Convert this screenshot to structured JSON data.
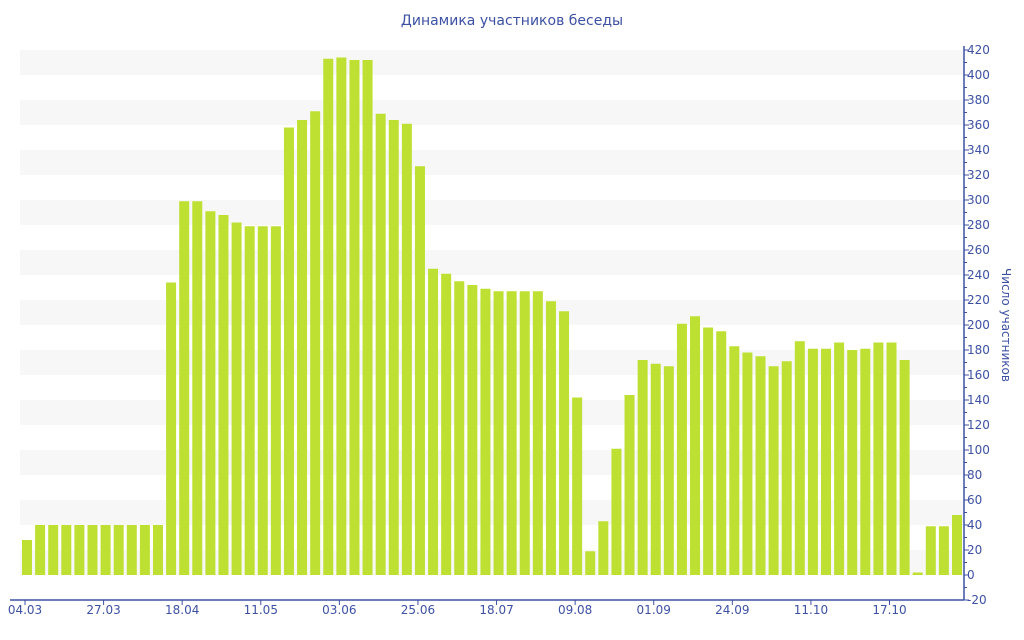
{
  "chart_data": {
    "type": "bar",
    "title": "Динамика участников беседы",
    "xlabel": "",
    "ylabel": "Число участников",
    "ylim": [
      -20,
      420
    ],
    "ytick_step": 20,
    "grid": "alternating horizontal bands",
    "legend": "none",
    "bar_color": "#bde032",
    "axis_color": "#3d51a3",
    "x_tick_labels": [
      "04.03",
      "27.03",
      "18.04",
      "11.05",
      "03.06",
      "25.06",
      "18.07",
      "09.08",
      "01.09",
      "24.09",
      "11.10",
      "17.10"
    ],
    "x_tick_bar_indices": [
      0,
      6,
      12,
      18,
      24,
      30,
      36,
      42,
      48,
      54,
      60,
      66
    ],
    "values": [
      28,
      40,
      40,
      40,
      40,
      40,
      40,
      40,
      40,
      40,
      40,
      234,
      299,
      299,
      291,
      288,
      282,
      279,
      279,
      279,
      358,
      364,
      371,
      413,
      414,
      412,
      412,
      369,
      364,
      361,
      327,
      245,
      241,
      235,
      232,
      229,
      227,
      227,
      227,
      227,
      219,
      211,
      142,
      19,
      43,
      101,
      144,
      172,
      169,
      167,
      201,
      207,
      198,
      195,
      183,
      178,
      175,
      167,
      171,
      187,
      181,
      181,
      186,
      180,
      181,
      186,
      186,
      172,
      2,
      39,
      39,
      48
    ]
  }
}
